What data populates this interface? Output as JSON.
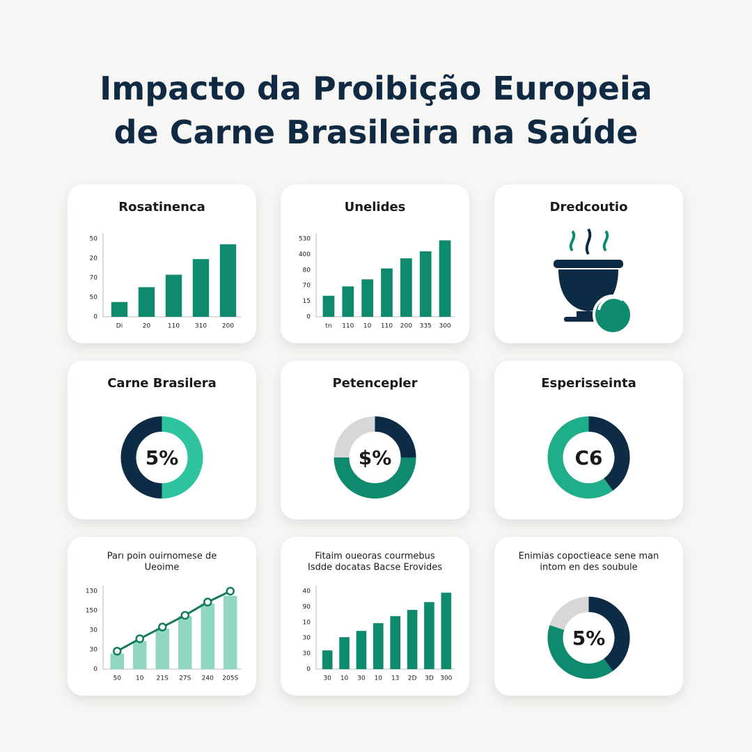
{
  "title": [
    "Impacto da Proibição Europeia",
    "de Carne Brasileira na Saúde"
  ],
  "chart_data": [
    {
      "type": "bar",
      "title": [
        "Rosatinenca"
      ],
      "color": "#0e8a6e",
      "y_axis_labels": [
        "0",
        "50",
        "70",
        "20",
        "50"
      ],
      "ylim": [
        0,
        100
      ],
      "categories": [
        "Di",
        "20",
        "110",
        "310",
        "200"
      ],
      "values": [
        19,
        38,
        54,
        74,
        93
      ]
    },
    {
      "type": "bar",
      "title": [
        "Unelides"
      ],
      "color": "#0e8a6e",
      "y_axis_labels": [
        "0",
        "15",
        "70",
        "80",
        "400",
        "530"
      ],
      "ylim": [
        0,
        100
      ],
      "categories": [
        "tn",
        "110",
        "10",
        "110",
        "200",
        "335",
        "300"
      ],
      "values": [
        27,
        39,
        48,
        62,
        75,
        84,
        98
      ]
    },
    {
      "type": "icon",
      "title": [
        "Dredcoutio"
      ]
    },
    {
      "type": "donut",
      "title": [
        "Carne Brasilera"
      ],
      "center_label": "5%",
      "values": [
        50,
        50
      ],
      "colors": [
        "#2ec4a0",
        "#0d2b45"
      ]
    },
    {
      "type": "donut",
      "title": [
        "Petencepler"
      ],
      "center_label": "$%",
      "values": [
        25,
        50,
        25
      ],
      "colors": [
        "#0d2b45",
        "#0e8a6e",
        "#d5d8d6"
      ]
    },
    {
      "type": "donut",
      "title": [
        "Esperisseinta"
      ],
      "center_label": "C6",
      "values": [
        40,
        60
      ],
      "colors": [
        "#0d2b45",
        "#1fae8a"
      ]
    },
    {
      "type": "bar_line",
      "title": [
        "Parı poin ouirnomese de",
        "Ueoime"
      ],
      "color": "#8fd6c3",
      "line_color": "#137a5d",
      "y_axis_labels": [
        "0",
        "30",
        "30",
        "150",
        "130"
      ],
      "ylim": [
        0,
        100
      ],
      "categories": [
        "50",
        "10",
        "21S",
        "27S",
        "240",
        "205S"
      ],
      "values": [
        20,
        36,
        52,
        68,
        84,
        94
      ],
      "line_values": [
        23,
        39,
        54,
        69,
        86,
        100
      ]
    },
    {
      "type": "bar",
      "title": [
        "Fitaim oueoras courmebus",
        "Isdde docatas Bacse Erovides"
      ],
      "color": "#0e8a6e",
      "y_axis_labels": [
        "0",
        "30",
        "30",
        "10",
        "90",
        "40"
      ],
      "ylim": [
        0,
        100
      ],
      "categories": [
        "30",
        "10",
        "30",
        "10",
        "13",
        "2D",
        "3D",
        "300"
      ],
      "values": [
        24,
        41,
        49,
        59,
        68,
        76,
        86,
        98
      ]
    },
    {
      "type": "donut",
      "title": [
        "Enimias copoctieace sene man",
        "intom en des soubule"
      ],
      "center_label": "5%",
      "values": [
        40,
        40,
        20
      ],
      "colors": [
        "#0d2b45",
        "#0e8a6e",
        "#d5d8d6"
      ]
    }
  ]
}
